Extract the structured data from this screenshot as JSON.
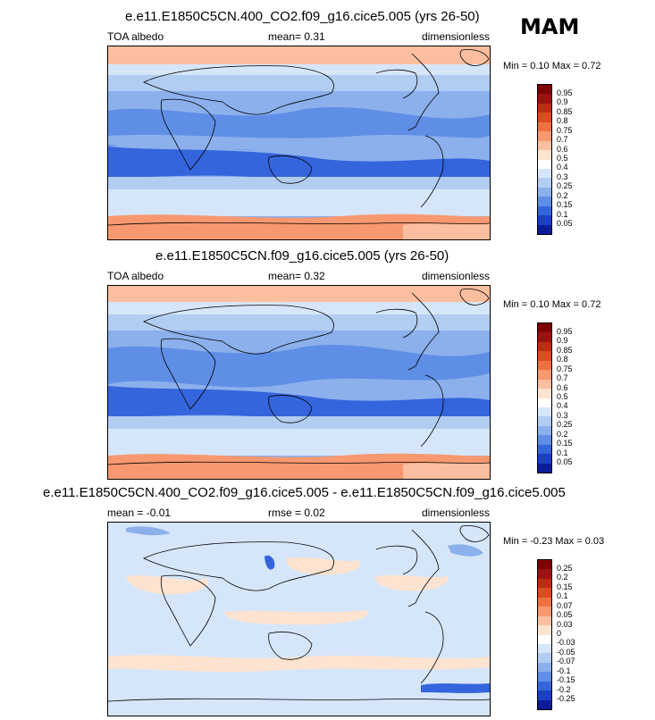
{
  "season": "MAM",
  "panels": [
    {
      "title": "e.e11.E1850C5CN.400_CO2.f09_g16.cice5.005 (yrs 26-50)",
      "left_label": "TOA albedo",
      "mid_label": "mean=   0.31",
      "right_label": "dimensionless",
      "minmax": "Min =   0.10 Max =   0.72",
      "colorbar": {
        "labels": [
          "0.95",
          "0.9",
          "0.85",
          "0.8",
          "0.75",
          "0.7",
          "0.6",
          "0.5",
          "0.4",
          "0.3",
          "0.25",
          "0.2",
          "0.15",
          "0.1",
          "0.05"
        ],
        "colors": [
          "#7f0000",
          "#a01010",
          "#c42a12",
          "#e04a1e",
          "#f07040",
          "#f79870",
          "#fbbfa0",
          "#fde3d0",
          "#ffffff",
          "#d6e6fa",
          "#b2cdf2",
          "#8bb0ec",
          "#5f8ee6",
          "#3565dc",
          "#1b3fc9",
          "#0b1c9a"
        ]
      }
    },
    {
      "title": "e.e11.E1850C5CN.f09_g16.cice5.005 (yrs 26-50)",
      "left_label": "TOA albedo",
      "mid_label": "mean=   0.32",
      "right_label": "dimensionless",
      "minmax": "Min =   0.10 Max =   0.72",
      "colorbar": {
        "labels": [
          "0.95",
          "0.9",
          "0.85",
          "0.8",
          "0.75",
          "0.7",
          "0.6",
          "0.5",
          "0.4",
          "0.3",
          "0.25",
          "0.2",
          "0.15",
          "0.1",
          "0.05"
        ],
        "colors": [
          "#7f0000",
          "#a01010",
          "#c42a12",
          "#e04a1e",
          "#f07040",
          "#f79870",
          "#fbbfa0",
          "#fde3d0",
          "#ffffff",
          "#d6e6fa",
          "#b2cdf2",
          "#8bb0ec",
          "#5f8ee6",
          "#3565dc",
          "#1b3fc9",
          "#0b1c9a"
        ]
      }
    },
    {
      "title": "e.e11.E1850C5CN.400_CO2.f09_g16.cice5.005 - e.e11.E1850C5CN.f09_g16.cice5.005",
      "left_label": "mean =  -0.01",
      "mid_label": "rmse =   0.02",
      "right_label": "dimensionless",
      "minmax": "Min =  -0.23 Max =   0.03",
      "colorbar": {
        "labels": [
          "0.25",
          "0.2",
          "0.15",
          "0.1",
          "0.07",
          "0.05",
          "0.03",
          "0",
          "-0.03",
          "-0.05",
          "-0.07",
          "-0.1",
          "-0.15",
          "-0.2",
          "-0.25"
        ],
        "colors": [
          "#7f0000",
          "#a01010",
          "#c42a12",
          "#e04a1e",
          "#f07040",
          "#f79870",
          "#fbbfa0",
          "#fde3d0",
          "#ffffff",
          "#d6e6fa",
          "#b2cdf2",
          "#8bb0ec",
          "#5f8ee6",
          "#3565dc",
          "#1b3fc9",
          "#0b1c9a"
        ]
      }
    }
  ]
}
